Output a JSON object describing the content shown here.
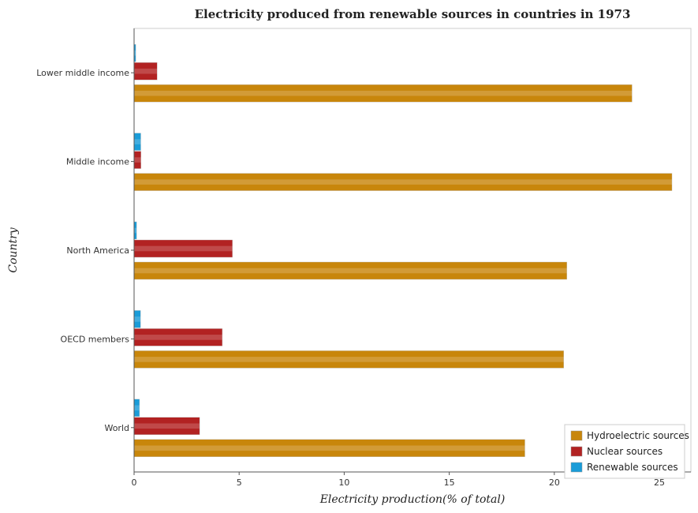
{
  "chart_data": {
    "type": "bar",
    "orientation": "horizontal",
    "title": "Electricity produced from renewable sources in countries in 1973",
    "xlabel": "Electricity production(% of total)",
    "ylabel": "Country",
    "xlim": [
      0,
      26.5
    ],
    "xticks": [
      0,
      5,
      10,
      15,
      20,
      25
    ],
    "categories": [
      "Lower middle income",
      "Middle income",
      "North America",
      "OECD members",
      "World"
    ],
    "series": [
      {
        "name": "Hydroelectric sources",
        "color": "#c8860b",
        "values": [
          23.7,
          25.6,
          20.6,
          20.45,
          18.6
        ]
      },
      {
        "name": "Nuclear sources",
        "color": "#b22222",
        "values": [
          1.1,
          0.33,
          4.68,
          4.2,
          3.12
        ]
      },
      {
        "name": "Renewable sources",
        "color": "#1a9cd8",
        "values": [
          0.08,
          0.32,
          0.12,
          0.31,
          0.26
        ]
      }
    ],
    "legend_position": "bottom-right",
    "grid": false
  }
}
